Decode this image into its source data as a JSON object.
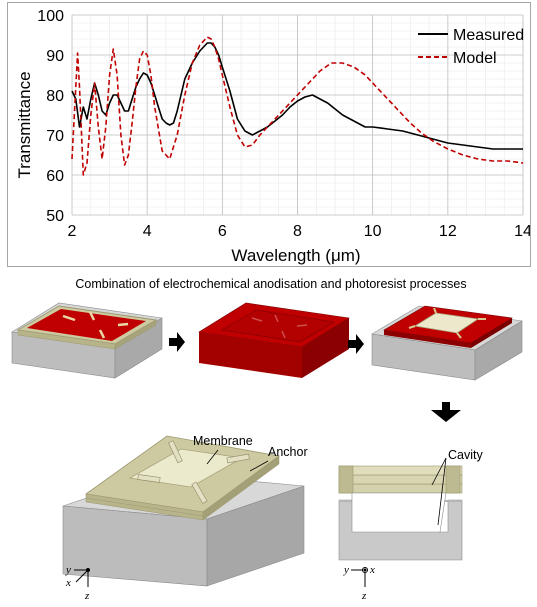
{
  "chart_data": {
    "type": "line",
    "title": "",
    "xlabel": "Wavelength (μm)",
    "ylabel": "Transmittance",
    "xlim": [
      2,
      14
    ],
    "ylim": [
      50,
      100
    ],
    "xticks": [
      "2",
      "4",
      "6",
      "8",
      "10",
      "12",
      "14"
    ],
    "yticks": [
      "50",
      "60",
      "70",
      "80",
      "90",
      "100"
    ],
    "grid": true,
    "legend_position": "top-right",
    "series": [
      {
        "name": "Measured",
        "color": "#000000",
        "style": "solid",
        "x": [
          2.0,
          2.1,
          2.2,
          2.3,
          2.4,
          2.5,
          2.6,
          2.7,
          2.8,
          2.9,
          3.0,
          3.1,
          3.2,
          3.3,
          3.4,
          3.5,
          3.6,
          3.7,
          3.8,
          3.9,
          4.0,
          4.1,
          4.2,
          4.3,
          4.4,
          4.5,
          4.6,
          4.7,
          4.8,
          4.9,
          5.0,
          5.2,
          5.4,
          5.6,
          5.7,
          5.8,
          5.9,
          6.0,
          6.2,
          6.4,
          6.6,
          6.8,
          7.0,
          7.2,
          7.4,
          7.6,
          7.8,
          8.0,
          8.2,
          8.4,
          8.6,
          8.8,
          9.0,
          9.2,
          9.4,
          9.6,
          9.8,
          10.0,
          10.4,
          10.8,
          11.2,
          11.6,
          12.0,
          12.4,
          12.8,
          13.2,
          13.6,
          14.0
        ],
        "y": [
          81,
          79,
          72,
          77,
          74,
          79,
          83,
          80,
          76,
          75,
          78,
          80,
          80,
          78,
          76,
          76,
          79,
          82,
          84,
          85.5,
          85,
          83,
          80,
          77,
          74,
          73,
          72.5,
          73,
          76,
          80,
          84,
          88,
          91,
          93,
          93,
          92,
          90,
          87,
          81,
          74,
          71,
          70,
          71,
          72,
          73.5,
          75,
          77,
          78.5,
          79.5,
          80,
          79,
          78,
          76.5,
          75,
          74,
          73,
          72,
          72,
          71.5,
          71,
          70,
          69,
          68,
          67.5,
          67,
          66.5,
          66.5,
          66.5
        ]
      },
      {
        "name": "Model",
        "color": "#c00000",
        "style": "dashed",
        "x": [
          2.0,
          2.1,
          2.15,
          2.2,
          2.3,
          2.4,
          2.5,
          2.6,
          2.7,
          2.8,
          2.9,
          3.0,
          3.1,
          3.2,
          3.3,
          3.4,
          3.5,
          3.6,
          3.7,
          3.8,
          3.9,
          4.0,
          4.1,
          4.2,
          4.4,
          4.6,
          4.8,
          5.0,
          5.2,
          5.4,
          5.6,
          5.7,
          5.8,
          5.9,
          6.0,
          6.2,
          6.4,
          6.6,
          6.8,
          7.0,
          7.2,
          7.4,
          7.6,
          7.8,
          8.0,
          8.3,
          8.6,
          8.9,
          9.2,
          9.5,
          9.8,
          10.1,
          10.4,
          10.7,
          11.0,
          11.3,
          11.6,
          12.0,
          12.4,
          12.8,
          13.2,
          13.6,
          14.0
        ],
        "y": [
          64,
          82,
          90.5,
          82,
          60,
          63,
          75,
          83,
          72,
          64,
          72,
          85,
          91.5,
          85,
          70,
          62.5,
          65,
          73,
          82,
          89,
          91,
          90,
          85,
          77,
          66,
          64,
          70,
          80,
          88,
          92.5,
          94.5,
          94,
          92,
          89,
          85,
          77,
          70,
          67,
          67.5,
          70,
          72,
          74,
          76,
          78,
          80,
          83,
          86,
          88,
          88,
          87,
          85,
          82,
          79,
          76,
          73,
          70.5,
          68.5,
          66.5,
          65,
          64,
          63.5,
          63.5,
          63
        ]
      }
    ]
  },
  "diagram": {
    "caption": "Combination of electrochemical anodisation and photoresist processes",
    "labels": {
      "membrane": "Membrane",
      "anchor": "Anchor",
      "cavity": "Cavity"
    },
    "axes_left": {
      "y": "y",
      "x": "x",
      "z": "z"
    },
    "axes_right": {
      "y": "y",
      "x": "x",
      "z": "z"
    },
    "colors": {
      "red_layer": "#c00000",
      "dark_red": "#8b0000",
      "beige": "#c8c59a",
      "light_membrane": "#ebebd2",
      "grey_substrate": "#c9c9c9",
      "arrow": "#000000"
    }
  }
}
